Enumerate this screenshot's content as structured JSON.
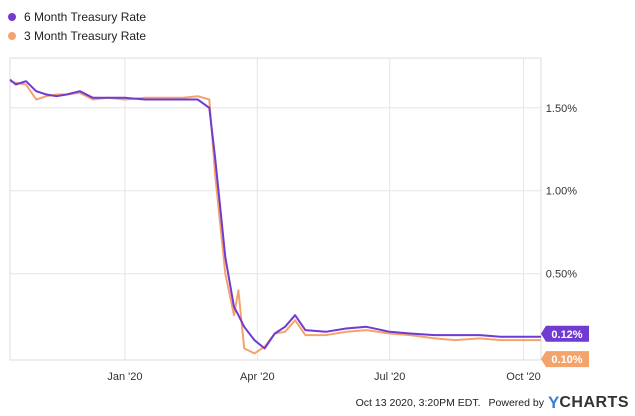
{
  "legend": [
    {
      "label": "6 Month Treasury Rate",
      "color": "#6f3bd0"
    },
    {
      "label": "3 Month Treasury Rate",
      "color": "#f5a36c"
    }
  ],
  "footer": {
    "timestamp": "Oct 13 2020, 3:20PM EDT.",
    "powered_by": "Powered by",
    "brand_y": "Y",
    "brand_rest": "CHARTS"
  },
  "chart_data": {
    "type": "line",
    "x_range": [
      "2019-10-14",
      "2020-10-13"
    ],
    "x_ticks": [
      {
        "label": "Jan '20",
        "date": "2020-01-01"
      },
      {
        "label": "Apr '20",
        "date": "2020-04-01"
      },
      {
        "label": "Jul '20",
        "date": "2020-07-01"
      },
      {
        "label": "Oct '20",
        "date": "2020-10-01"
      }
    ],
    "y_ticks": [
      {
        "label": "0.50%",
        "value": 0.5
      },
      {
        "label": "1.00%",
        "value": 1.0
      },
      {
        "label": "1.50%",
        "value": 1.5
      }
    ],
    "ylim": [
      -0.02,
      1.8
    ],
    "grid": true,
    "legend_position": "top-left",
    "series": [
      {
        "name": "6 Month Treasury Rate",
        "color": "#6f3bd0",
        "last_label": "0.12%",
        "points": [
          [
            "2019-10-14",
            1.67
          ],
          [
            "2019-10-18",
            1.64
          ],
          [
            "2019-10-25",
            1.66
          ],
          [
            "2019-11-01",
            1.6
          ],
          [
            "2019-11-08",
            1.58
          ],
          [
            "2019-11-15",
            1.57
          ],
          [
            "2019-11-22",
            1.58
          ],
          [
            "2019-12-01",
            1.6
          ],
          [
            "2019-12-10",
            1.56
          ],
          [
            "2019-12-20",
            1.56
          ],
          [
            "2020-01-01",
            1.56
          ],
          [
            "2020-01-15",
            1.55
          ],
          [
            "2020-01-31",
            1.55
          ],
          [
            "2020-02-10",
            1.55
          ],
          [
            "2020-02-20",
            1.55
          ],
          [
            "2020-02-28",
            1.5
          ],
          [
            "2020-03-03",
            1.2
          ],
          [
            "2020-03-10",
            0.6
          ],
          [
            "2020-03-16",
            0.3
          ],
          [
            "2020-03-19",
            0.25
          ],
          [
            "2020-03-23",
            0.18
          ],
          [
            "2020-03-30",
            0.1
          ],
          [
            "2020-04-06",
            0.05
          ],
          [
            "2020-04-13",
            0.14
          ],
          [
            "2020-04-20",
            0.18
          ],
          [
            "2020-04-27",
            0.25
          ],
          [
            "2020-05-04",
            0.16
          ],
          [
            "2020-05-18",
            0.15
          ],
          [
            "2020-06-01",
            0.17
          ],
          [
            "2020-06-15",
            0.18
          ],
          [
            "2020-07-01",
            0.15
          ],
          [
            "2020-07-15",
            0.14
          ],
          [
            "2020-08-01",
            0.13
          ],
          [
            "2020-08-15",
            0.13
          ],
          [
            "2020-09-01",
            0.13
          ],
          [
            "2020-09-15",
            0.12
          ],
          [
            "2020-10-01",
            0.12
          ],
          [
            "2020-10-13",
            0.12
          ]
        ]
      },
      {
        "name": "3 Month Treasury Rate",
        "color": "#f5a36c",
        "last_label": "0.10%",
        "points": [
          [
            "2019-10-14",
            1.66
          ],
          [
            "2019-10-18",
            1.65
          ],
          [
            "2019-10-25",
            1.64
          ],
          [
            "2019-11-01",
            1.55
          ],
          [
            "2019-11-08",
            1.57
          ],
          [
            "2019-11-15",
            1.58
          ],
          [
            "2019-11-22",
            1.58
          ],
          [
            "2019-12-01",
            1.59
          ],
          [
            "2019-12-10",
            1.55
          ],
          [
            "2019-12-20",
            1.56
          ],
          [
            "2020-01-01",
            1.55
          ],
          [
            "2020-01-15",
            1.56
          ],
          [
            "2020-01-31",
            1.56
          ],
          [
            "2020-02-10",
            1.56
          ],
          [
            "2020-02-20",
            1.57
          ],
          [
            "2020-02-28",
            1.55
          ],
          [
            "2020-03-03",
            1.1
          ],
          [
            "2020-03-10",
            0.5
          ],
          [
            "2020-03-16",
            0.25
          ],
          [
            "2020-03-19",
            0.4
          ],
          [
            "2020-03-23",
            0.05
          ],
          [
            "2020-03-30",
            0.02
          ],
          [
            "2020-04-06",
            0.06
          ],
          [
            "2020-04-13",
            0.14
          ],
          [
            "2020-04-20",
            0.15
          ],
          [
            "2020-04-27",
            0.22
          ],
          [
            "2020-05-04",
            0.13
          ],
          [
            "2020-05-18",
            0.13
          ],
          [
            "2020-06-01",
            0.15
          ],
          [
            "2020-06-15",
            0.16
          ],
          [
            "2020-07-01",
            0.14
          ],
          [
            "2020-07-15",
            0.13
          ],
          [
            "2020-08-01",
            0.11
          ],
          [
            "2020-08-15",
            0.1
          ],
          [
            "2020-09-01",
            0.11
          ],
          [
            "2020-09-15",
            0.1
          ],
          [
            "2020-10-01",
            0.1
          ],
          [
            "2020-10-13",
            0.1
          ]
        ]
      }
    ]
  }
}
